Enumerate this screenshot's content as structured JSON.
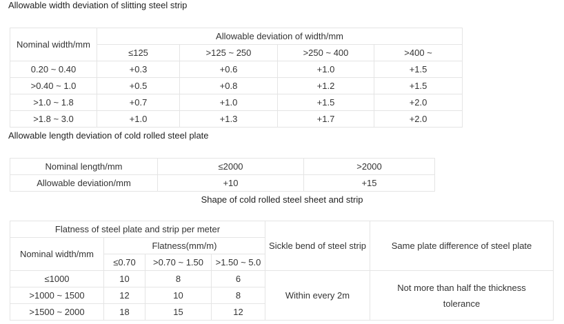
{
  "section1": {
    "title": "Allowable width deviation of slitting steel strip",
    "col_header": "Nominal width/mm",
    "group_header": "Allowable deviation of width/mm",
    "ranges": [
      "≤125",
      ">125 ~ 250",
      ">250 ~ 400",
      ">400 ~"
    ],
    "rows": [
      {
        "width": "0.20 ~ 0.40",
        "values": [
          "+0.3",
          "+0.6",
          "+1.0",
          "+1.5"
        ]
      },
      {
        "width": ">0.40 ~ 1.0",
        "values": [
          "+0.5",
          "+0.8",
          "+1.2",
          "+1.5"
        ]
      },
      {
        "width": ">1.0 ~ 1.8",
        "values": [
          "+0.7",
          "+1.0",
          "+1.5",
          "+2.0"
        ]
      },
      {
        "width": ">1.8 ~ 3.0",
        "values": [
          "+1.0",
          "+1.3",
          "+1.7",
          "+2.0"
        ]
      }
    ]
  },
  "section2": {
    "title": "Allowable length deviation of cold rolled steel plate",
    "row1": {
      "label": "Nominal length/mm",
      "a": "≤2000",
      "b": ">2000"
    },
    "row2": {
      "label": "Allowable deviation/mm",
      "a": "+10",
      "b": "+15"
    }
  },
  "section3": {
    "title": "Shape of cold rolled steel sheet and strip",
    "flatness_header": "Flatness of steel plate and strip per meter",
    "nominal_width": "Nominal width/mm",
    "flatness_unit": "Flatness(mm/m)",
    "flat_cols": [
      "≤0.70",
      ">0.70 ~ 1.50",
      ">1.50 ~ 5.0"
    ],
    "sickle_header": "Sickle bend of steel strip",
    "same_plate_header": "Same plate difference of steel plate",
    "rows": [
      {
        "width": "≤1000",
        "values": [
          "10",
          "8",
          "6"
        ]
      },
      {
        "width": ">1000 ~ 1500",
        "values": [
          "12",
          "10",
          "8"
        ]
      },
      {
        "width": ">1500 ~ 2000",
        "values": [
          "18",
          "15",
          "12"
        ]
      }
    ],
    "sickle_value": "Within every 2m",
    "same_plate_value": "Not more than half the thickness tolerance"
  }
}
